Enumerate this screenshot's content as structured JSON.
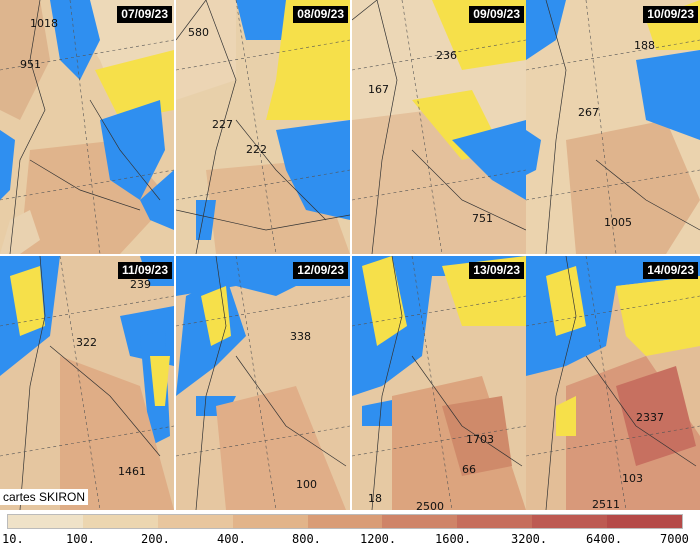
{
  "credit": "cartes SKIRON",
  "panels": [
    {
      "date": "07/09/23",
      "labels": [
        "1018",
        "951"
      ]
    },
    {
      "date": "08/09/23",
      "labels": [
        "580",
        "227",
        "222"
      ]
    },
    {
      "date": "09/09/23",
      "labels": [
        "236",
        "167",
        "751"
      ]
    },
    {
      "date": "10/09/23",
      "labels": [
        "188",
        "267",
        "1005"
      ]
    },
    {
      "date": "11/09/23",
      "labels": [
        "239",
        "322",
        "1461"
      ]
    },
    {
      "date": "12/09/23",
      "labels": [
        "338",
        "100"
      ]
    },
    {
      "date": "13/09/23",
      "labels": [
        "1703",
        "66",
        "18",
        "2500"
      ]
    },
    {
      "date": "14/09/23",
      "labels": [
        "2337",
        "103",
        "2511"
      ]
    }
  ],
  "legend": {
    "ticks": [
      "10.",
      "100.",
      "200.",
      "400.",
      "800.",
      "1200.",
      "1600.",
      "3200.",
      "6400.",
      "7000"
    ],
    "colors": [
      "#efe2c8",
      "#ecd6b0",
      "#e8c69e",
      "#e2b48a",
      "#d99c76",
      "#cf8468",
      "#c66e5c",
      "#bd5a52",
      "#b54a48"
    ]
  }
}
